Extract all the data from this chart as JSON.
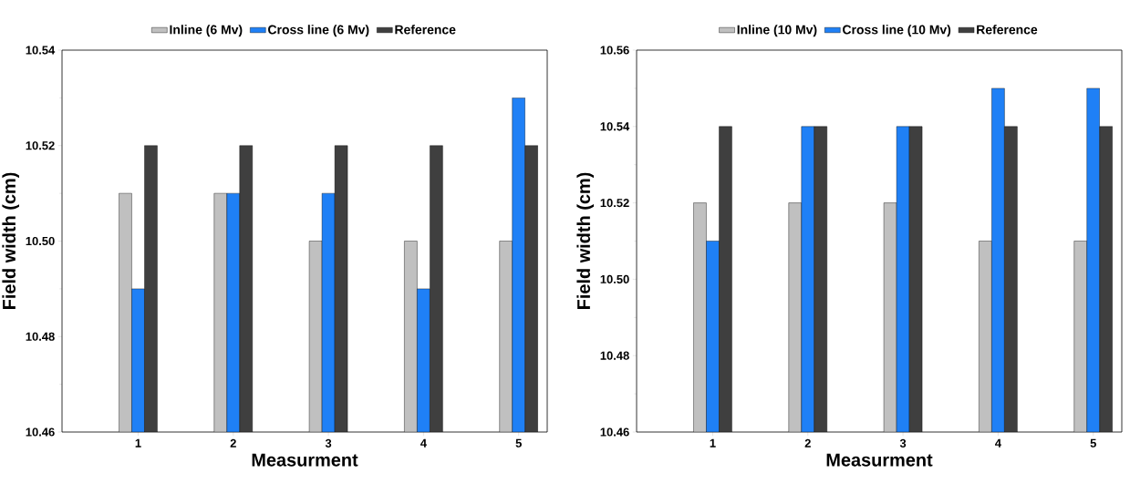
{
  "chart_data": [
    {
      "type": "bar",
      "categories": [
        "1",
        "2",
        "3",
        "4",
        "5"
      ],
      "xlabel": "Measurment",
      "ylabel": "Field width (cm)",
      "ylim": [
        10.46,
        10.54
      ],
      "yticks": [
        {
          "value": 10.46,
          "label": "10.46"
        },
        {
          "value": 10.48,
          "label": "10.48"
        },
        {
          "value": 10.5,
          "label": "10.50"
        },
        {
          "value": 10.52,
          "label": "10.52"
        },
        {
          "value": 10.54,
          "label": "10.54"
        }
      ],
      "legend": "top",
      "grid": false,
      "series": [
        {
          "name": "Inline (6 Mv)",
          "color": "#c0c0c0",
          "values": [
            10.51,
            10.51,
            10.5,
            10.5,
            10.5
          ]
        },
        {
          "name": "Cross line (6 Mv)",
          "color": "#1f80f6",
          "values": [
            10.49,
            10.51,
            10.51,
            10.49,
            10.53
          ]
        },
        {
          "name": "Reference",
          "color": "#3f3f3f",
          "values": [
            10.52,
            10.52,
            10.52,
            10.52,
            10.52
          ]
        }
      ]
    },
    {
      "type": "bar",
      "categories": [
        "1",
        "2",
        "3",
        "4",
        "5"
      ],
      "xlabel": "Measurment",
      "ylabel": "Field width (cm)",
      "ylim": [
        10.46,
        10.56
      ],
      "yticks": [
        {
          "value": 10.46,
          "label": "10.46"
        },
        {
          "value": 10.48,
          "label": "10.48"
        },
        {
          "value": 10.5,
          "label": "10.50"
        },
        {
          "value": 10.52,
          "label": "10.52"
        },
        {
          "value": 10.54,
          "label": "10.54"
        },
        {
          "value": 10.56,
          "label": "10.56"
        }
      ],
      "legend": "top",
      "grid": false,
      "series": [
        {
          "name": "Inline (10 Mv)",
          "color": "#c0c0c0",
          "values": [
            10.52,
            10.52,
            10.52,
            10.51,
            10.51
          ]
        },
        {
          "name": "Cross line (10 Mv)",
          "color": "#1f80f6",
          "values": [
            10.51,
            10.54,
            10.54,
            10.55,
            10.55
          ]
        },
        {
          "name": "Reference",
          "color": "#3f3f3f",
          "values": [
            10.54,
            10.54,
            10.54,
            10.54,
            10.54
          ]
        }
      ]
    }
  ]
}
